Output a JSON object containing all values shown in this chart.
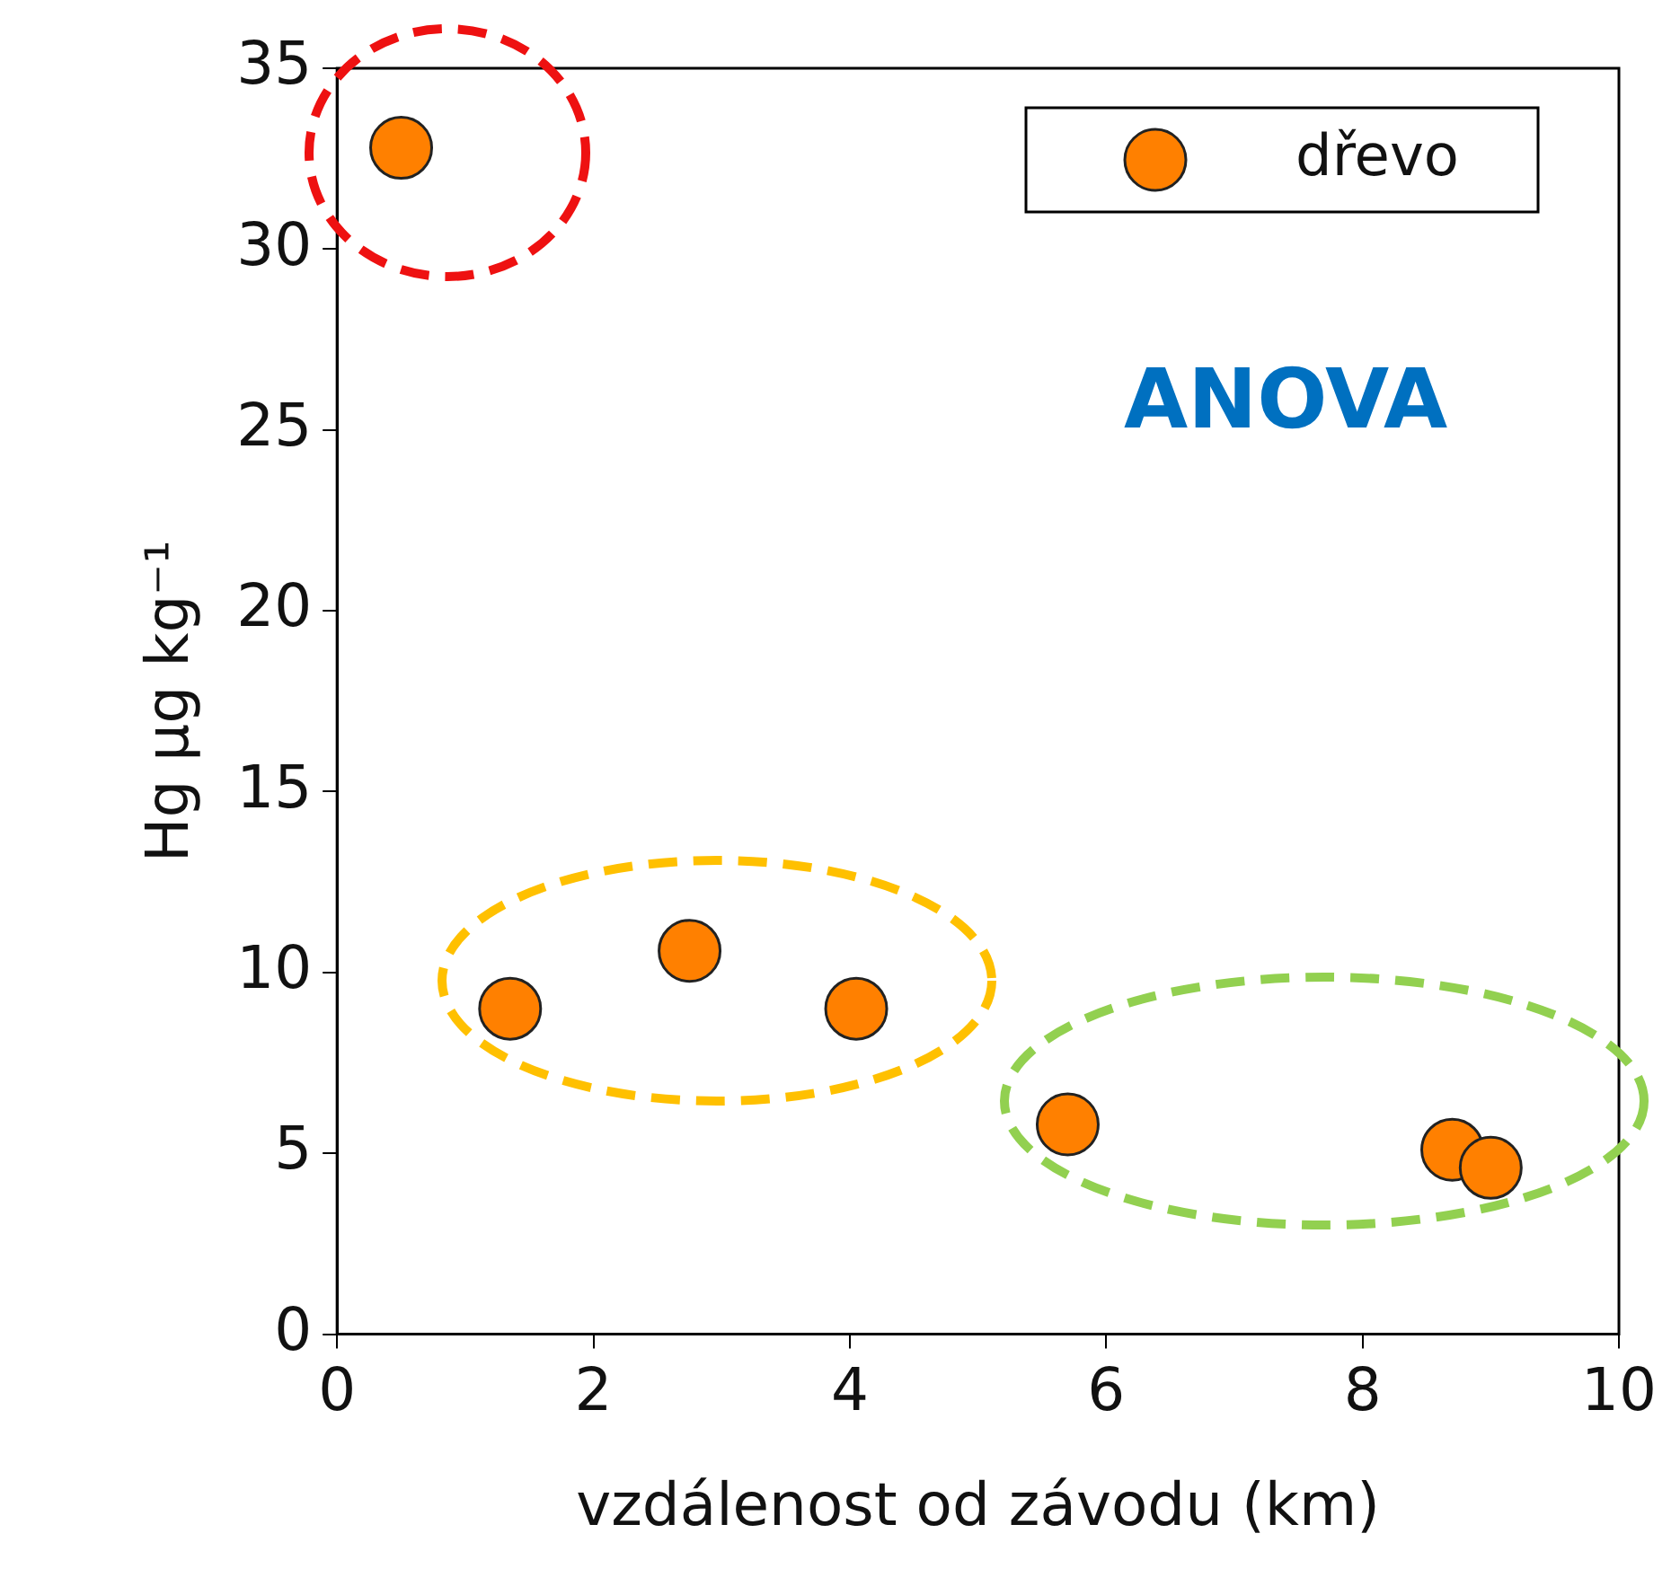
{
  "chart_data": {
    "type": "scatter",
    "xlabel": "vzdálenost od závodu (km)",
    "ylabel": "Hg µg kg⁻¹",
    "x": [
      0.5,
      1.35,
      2.75,
      4.05,
      5.7,
      8.7,
      9.0
    ],
    "series": [
      {
        "name": "dřevo",
        "color": "#ff8000",
        "values": [
          32.8,
          9.0,
          10.6,
          9.0,
          5.8,
          5.1,
          4.6
        ]
      }
    ],
    "xlim": [
      0,
      10
    ],
    "xticks": [
      0,
      2,
      4,
      6,
      8,
      10
    ],
    "ylim": [
      0,
      35
    ],
    "yticks": [
      0,
      5,
      10,
      15,
      20,
      25,
      30,
      35
    ],
    "grid": false,
    "legend": "top right",
    "marker": "circle",
    "annotations": [
      "ANOVA"
    ]
  }
}
